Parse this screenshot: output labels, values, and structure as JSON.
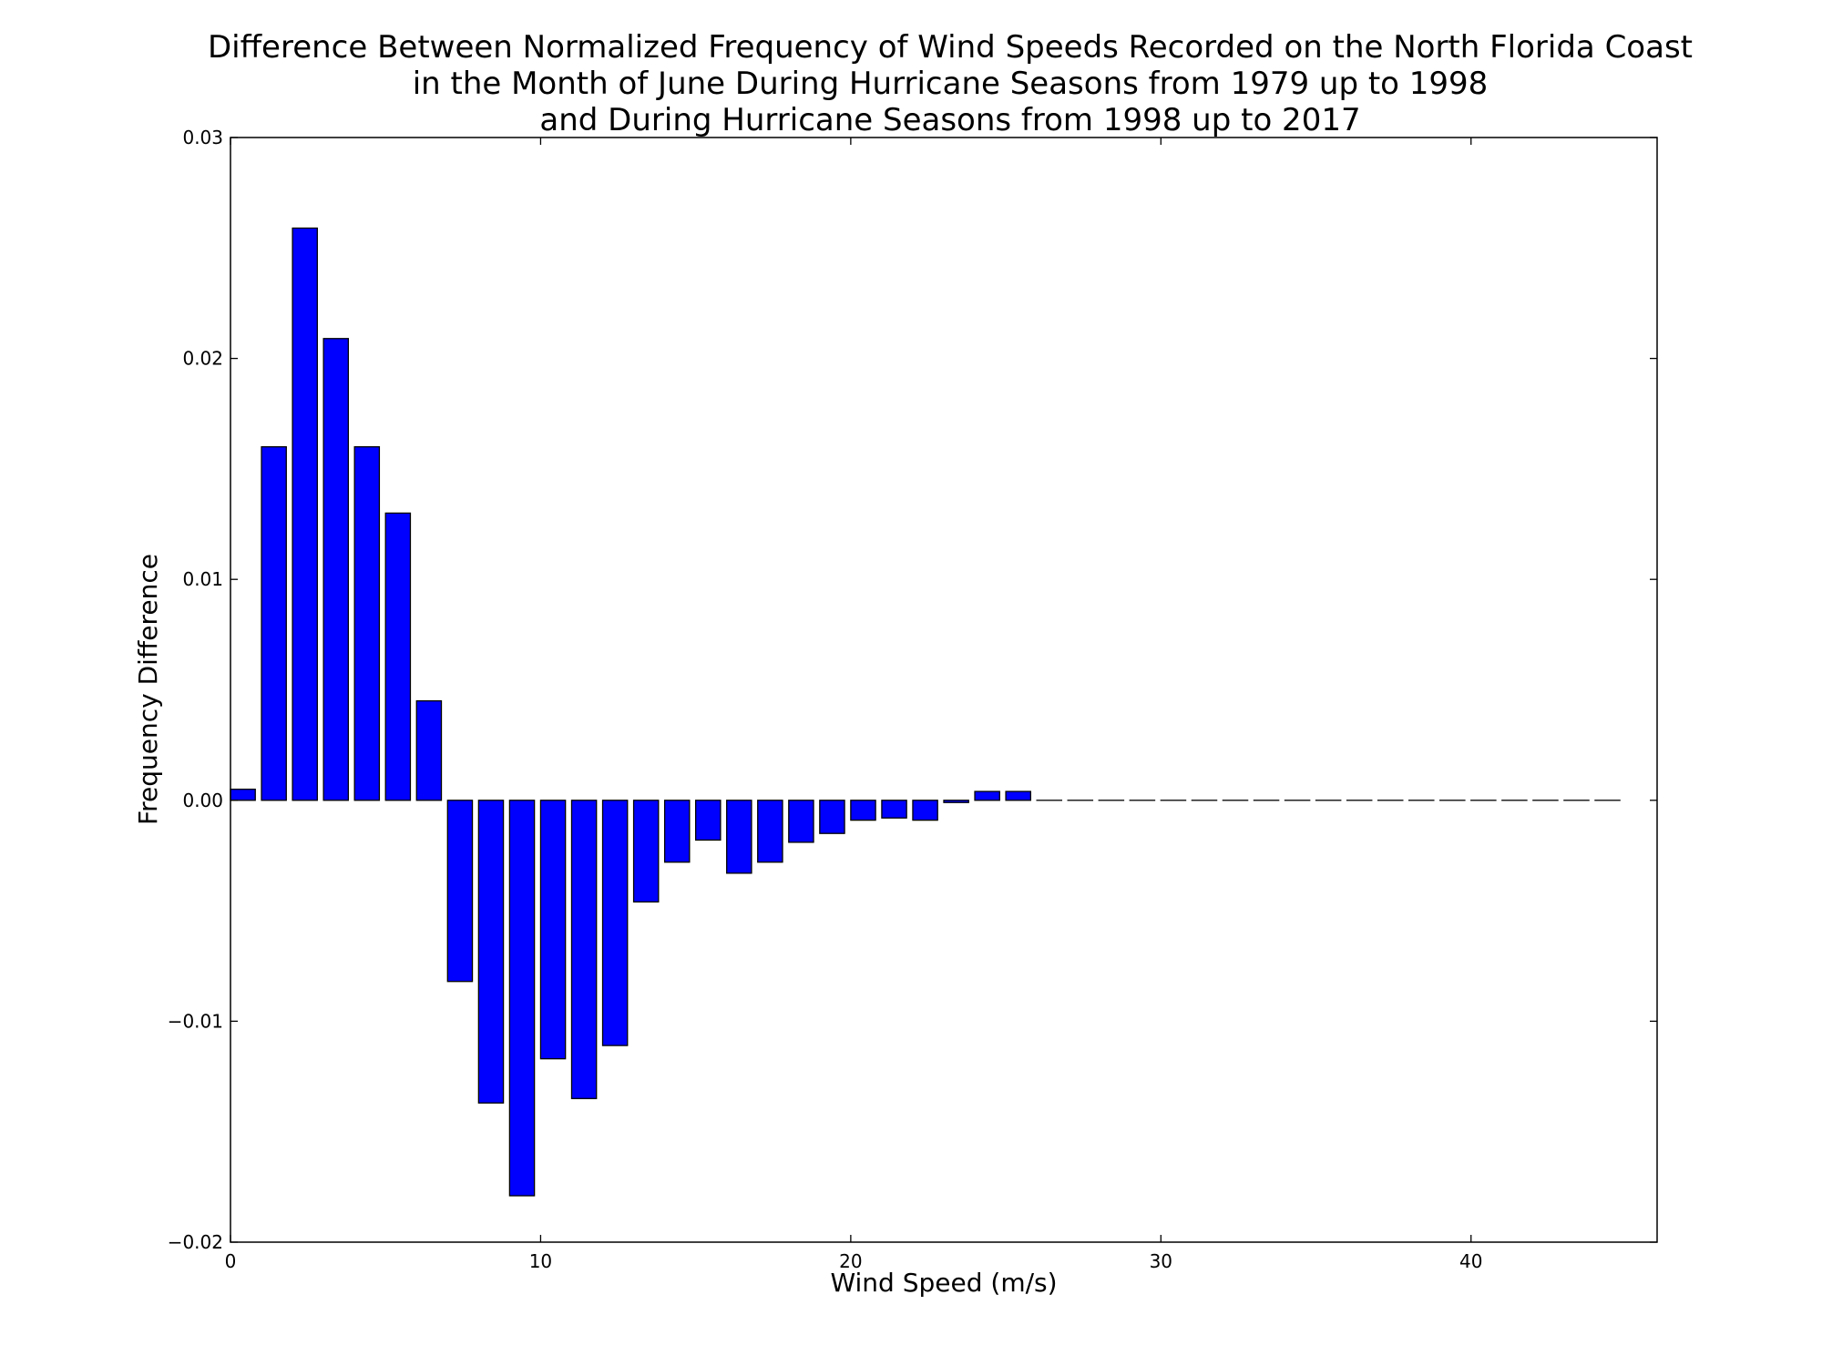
{
  "chart_data": {
    "type": "bar",
    "title_lines": [
      "Difference Between Normalized Frequency of Wind Speeds Recorded on the North Florida Coast",
      "in the Month of June During Hurricane Seasons from 1979 up to 1998",
      "and During Hurricane Seasons from 1998 up to 2017"
    ],
    "xlabel": "Wind Speed (m/s)",
    "ylabel": "Frequency Difference",
    "xlim": [
      0,
      46
    ],
    "ylim": [
      -0.02,
      0.03
    ],
    "xticks": [
      0,
      10,
      20,
      30,
      40
    ],
    "xtick_labels": [
      "0",
      "10",
      "20",
      "30",
      "40"
    ],
    "yticks": [
      -0.02,
      -0.01,
      0.0,
      0.01,
      0.02,
      0.03
    ],
    "ytick_labels": [
      "−0.02",
      "−0.01",
      "0.00",
      "0.01",
      "0.02",
      "0.03"
    ],
    "bar_width": 0.8,
    "bar_color": "#0000ff",
    "bar_edge_color": "#000000",
    "grid": false,
    "x": [
      0,
      1,
      2,
      3,
      4,
      5,
      6,
      7,
      8,
      9,
      10,
      11,
      12,
      13,
      14,
      15,
      16,
      17,
      18,
      19,
      20,
      21,
      22,
      23,
      24,
      25,
      26,
      27,
      28,
      29,
      30,
      31,
      32,
      33,
      34,
      35,
      36,
      37,
      38,
      39,
      40,
      41,
      42,
      43,
      44
    ],
    "values": [
      0.0005,
      0.016,
      0.0259,
      0.0209,
      0.016,
      0.013,
      0.0045,
      -0.0082,
      -0.0137,
      -0.0179,
      -0.0117,
      -0.0135,
      -0.0111,
      -0.0046,
      -0.0028,
      -0.0018,
      -0.0033,
      -0.0028,
      -0.0019,
      -0.0015,
      -0.0009,
      -0.0008,
      -0.0009,
      -0.0001,
      0.0004,
      0.0004,
      0,
      0,
      0,
      0,
      0,
      0,
      0,
      0,
      0,
      0,
      0,
      0,
      0,
      0,
      0,
      0,
      0,
      0,
      0
    ]
  }
}
